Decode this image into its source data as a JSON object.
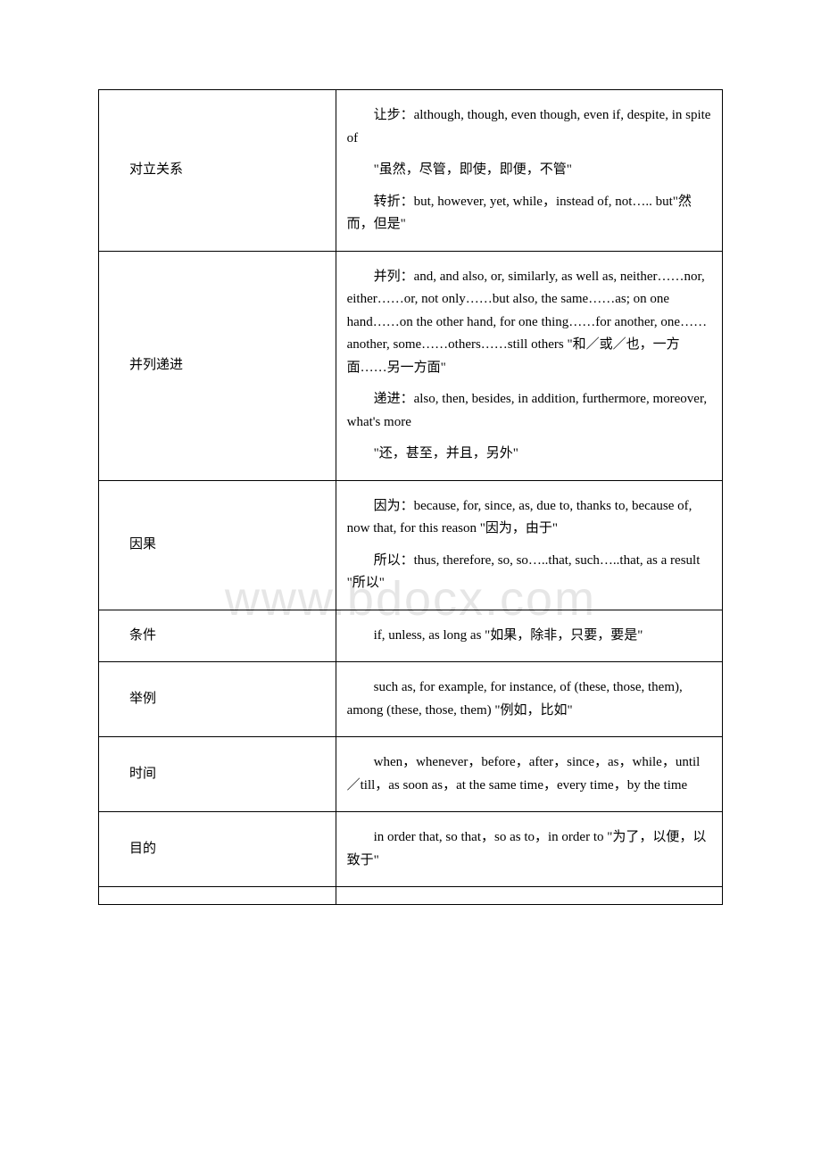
{
  "watermark": "www.bdocx.com",
  "rows": [
    {
      "label": "对立关系",
      "paragraphs": [
        "让步：although, though, even though, even if, despite, in spite of",
        "\"虽然，尽管，即使，即便，不管\"",
        "转折：but, however, yet, while，instead of, not….. but\"然而，但是\""
      ]
    },
    {
      "label": "并列递进",
      "paragraphs": [
        "并列：and, and also, or, similarly, as well as, neither……nor, either……or, not only……but also, the same……as; on one hand……on the other hand, for one thing……for another, one……another, some……others……still others \"和／或／也，一方面……另一方面\"",
        "递进：also, then, besides, in addition, furthermore, moreover, what's more",
        "\"还，甚至，并且，另外\""
      ]
    },
    {
      "label": "因果",
      "paragraphs": [
        "因为：because, for, since, as, due to, thanks to, because of, now that, for this reason \"因为，由于\"",
        "所以：thus, therefore, so, so…..that, such…..that, as a result \"所以\""
      ]
    },
    {
      "label": "条件",
      "paragraphs": [
        "if, unless, as long as \"如果，除非，只要，要是\""
      ]
    },
    {
      "label": "举例",
      "paragraphs": [
        "such as, for example, for instance, of (these, those, them), among (these, those, them) \"例如，比如\""
      ]
    },
    {
      "label": "时间",
      "paragraphs": [
        "when，whenever，before，after，since，as，while，until／till，as soon as，at the same time，every time，by the time"
      ]
    },
    {
      "label": "目的",
      "paragraphs": [
        "in order that, so that，so as to，in order to \"为了，以便，以致于\""
      ]
    }
  ]
}
